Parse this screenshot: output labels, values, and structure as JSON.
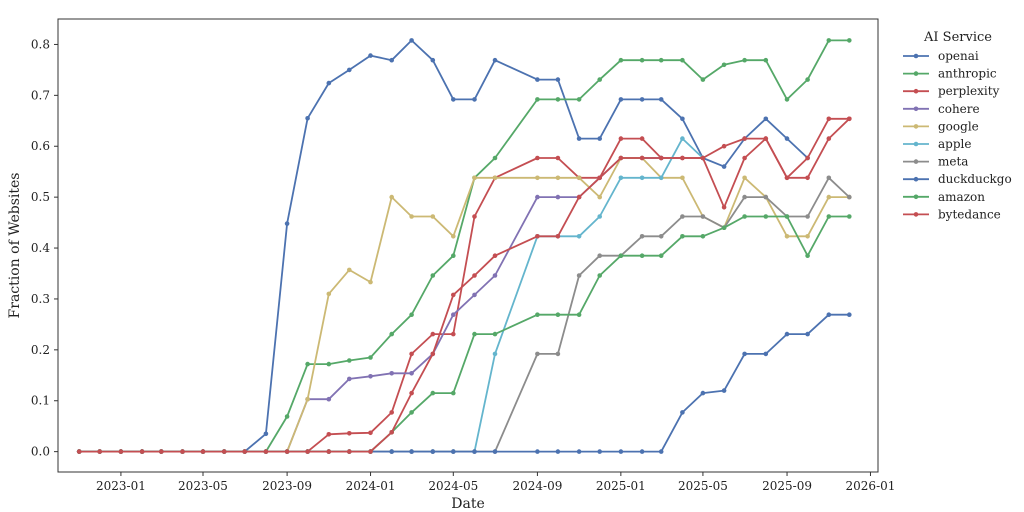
{
  "chart_data": {
    "type": "line",
    "xlabel": "Date",
    "ylabel": "Fraction of Websites",
    "x_type": "date",
    "xlim": [
      "2022-10-01",
      "2026-01-12"
    ],
    "ylim": [
      -0.04,
      0.85
    ],
    "x_ticks": [
      "2023-01",
      "2023-05",
      "2023-09",
      "2024-01",
      "2024-05",
      "2024-09",
      "2025-01",
      "2025-05",
      "2025-09",
      "2026-01"
    ],
    "y_ticks": [
      "0.0",
      "0.1",
      "0.2",
      "0.3",
      "0.4",
      "0.5",
      "0.6",
      "0.7",
      "0.8"
    ],
    "grid": false,
    "legend": {
      "title": "AI Service",
      "placement": "outside-right"
    },
    "x": [
      "2022-11",
      "2022-12",
      "2023-01",
      "2023-02",
      "2023-03",
      "2023-04",
      "2023-05",
      "2023-06",
      "2023-07",
      "2023-08",
      "2023-09",
      "2023-10",
      "2023-11",
      "2023-12",
      "2024-01",
      "2024-02",
      "2024-03",
      "2024-04",
      "2024-05",
      "2024-06",
      "2024-07",
      "2024-08",
      "2024-09",
      "2024-10",
      "2024-11",
      "2024-12",
      "2025-01",
      "2025-02",
      "2025-03",
      "2025-04",
      "2025-05",
      "2025-06",
      "2025-07",
      "2025-08",
      "2025-09",
      "2025-10",
      "2025-11",
      "2025-12"
    ],
    "series": [
      {
        "name": "openai",
        "color": "#4c72b0",
        "values": [
          0,
          0,
          0,
          0,
          0,
          0,
          0,
          0,
          0,
          0.035,
          0.448,
          0.655,
          0.724,
          0.75,
          0.778,
          0.769,
          0.808,
          0.769,
          0.692,
          0.692,
          0.769,
          null,
          0.731,
          0.731,
          0.615,
          0.615,
          0.692,
          0.692,
          0.692,
          0.654,
          0.577,
          0.56,
          0.615,
          0.654,
          0.615,
          0.577,
          null,
          null
        ]
      },
      {
        "name": "anthropic",
        "color": "#55a868",
        "values": [
          0,
          0,
          0,
          0,
          0,
          0,
          0,
          0,
          0,
          0,
          0.069,
          0.172,
          0.172,
          0.179,
          0.185,
          0.231,
          0.269,
          0.346,
          0.385,
          0.538,
          0.577,
          null,
          0.692,
          0.692,
          0.692,
          0.731,
          0.769,
          0.769,
          0.769,
          0.769,
          0.731,
          0.76,
          0.769,
          0.769,
          0.692,
          0.731,
          0.808,
          0.808
        ]
      },
      {
        "name": "perplexity",
        "color": "#c44e52",
        "values": [
          0,
          0,
          0,
          0,
          0,
          0,
          0,
          0,
          0,
          0,
          0,
          0,
          0.034,
          0.036,
          0.037,
          0.077,
          0.192,
          0.231,
          0.231,
          0.462,
          0.538,
          null,
          0.577,
          0.577,
          0.538,
          0.538,
          0.615,
          0.615,
          0.577,
          0.577,
          0.577,
          0.6,
          0.615,
          0.615,
          0.538,
          0.538,
          0.615,
          0.654
        ]
      },
      {
        "name": "cohere",
        "color": "#8172b3",
        "values": [
          0,
          0,
          0,
          0,
          0,
          0,
          0,
          0,
          0,
          0,
          0,
          0.103,
          0.103,
          0.143,
          0.148,
          0.154,
          0.154,
          0.192,
          0.269,
          0.308,
          0.346,
          null,
          0.5,
          0.5,
          0.5,
          0.538,
          0.577,
          0.577,
          0.577,
          null,
          null,
          null,
          null,
          null,
          null,
          null,
          null,
          null
        ]
      },
      {
        "name": "google",
        "color": "#ccb974",
        "values": [
          0,
          0,
          0,
          0,
          0,
          0,
          0,
          0,
          0,
          0,
          0,
          0.103,
          0.31,
          0.357,
          0.333,
          0.5,
          0.462,
          0.462,
          0.423,
          0.538,
          0.538,
          null,
          0.538,
          0.538,
          0.538,
          0.5,
          0.577,
          0.577,
          0.538,
          0.538,
          0.462,
          0.44,
          0.538,
          0.5,
          0.423,
          0.423,
          0.5,
          0.5
        ]
      },
      {
        "name": "apple",
        "color": "#64b5cd",
        "values": [
          0,
          0,
          0,
          0,
          0,
          0,
          0,
          0,
          0,
          0,
          0,
          0,
          0,
          0,
          0,
          0,
          0,
          0,
          0,
          0,
          0.192,
          null,
          0.423,
          0.423,
          0.423,
          0.462,
          0.538,
          0.538,
          0.538,
          0.615,
          0.577,
          null,
          null,
          null,
          null,
          null,
          null,
          null
        ]
      },
      {
        "name": "meta",
        "color": "#8c8c8c",
        "values": [
          0,
          0,
          0,
          0,
          0,
          0,
          0,
          0,
          0,
          0,
          0,
          0,
          0,
          0,
          0,
          0,
          0,
          0,
          0,
          0,
          0,
          null,
          0.192,
          0.192,
          0.346,
          0.385,
          0.385,
          0.423,
          0.423,
          0.462,
          0.462,
          0.44,
          0.5,
          0.5,
          0.462,
          0.462,
          0.538,
          0.5
        ]
      },
      {
        "name": "duckduckgo",
        "color": "#4c72b0",
        "values": [
          0,
          0,
          0,
          0,
          0,
          0,
          0,
          0,
          0,
          0,
          0,
          0,
          0,
          0,
          0,
          0,
          0,
          0,
          0,
          0,
          0,
          null,
          0,
          0,
          0,
          0,
          0,
          0,
          0,
          0.077,
          0.115,
          0.12,
          0.192,
          0.192,
          0.231,
          0.231,
          0.269,
          0.269
        ]
      },
      {
        "name": "amazon",
        "color": "#55a868",
        "values": [
          0,
          0,
          0,
          0,
          0,
          0,
          0,
          0,
          0,
          0,
          0,
          0,
          0,
          0,
          0,
          0.038,
          0.077,
          0.115,
          0.115,
          0.231,
          0.231,
          null,
          0.269,
          0.269,
          0.269,
          0.346,
          0.385,
          0.385,
          0.385,
          0.423,
          0.423,
          0.44,
          0.462,
          0.462,
          0.462,
          0.385,
          0.462,
          0.462
        ]
      },
      {
        "name": "bytedance",
        "color": "#c44e52",
        "values": [
          0,
          0,
          0,
          0,
          0,
          0,
          0,
          0,
          0,
          0,
          0,
          0,
          0,
          0,
          0,
          0.038,
          0.115,
          0.192,
          0.308,
          0.346,
          0.385,
          null,
          0.423,
          0.423,
          0.5,
          0.538,
          0.577,
          0.577,
          0.577,
          0.577,
          0.577,
          0.48,
          0.577,
          0.615,
          0.538,
          0.577,
          0.654,
          0.654
        ]
      }
    ]
  }
}
